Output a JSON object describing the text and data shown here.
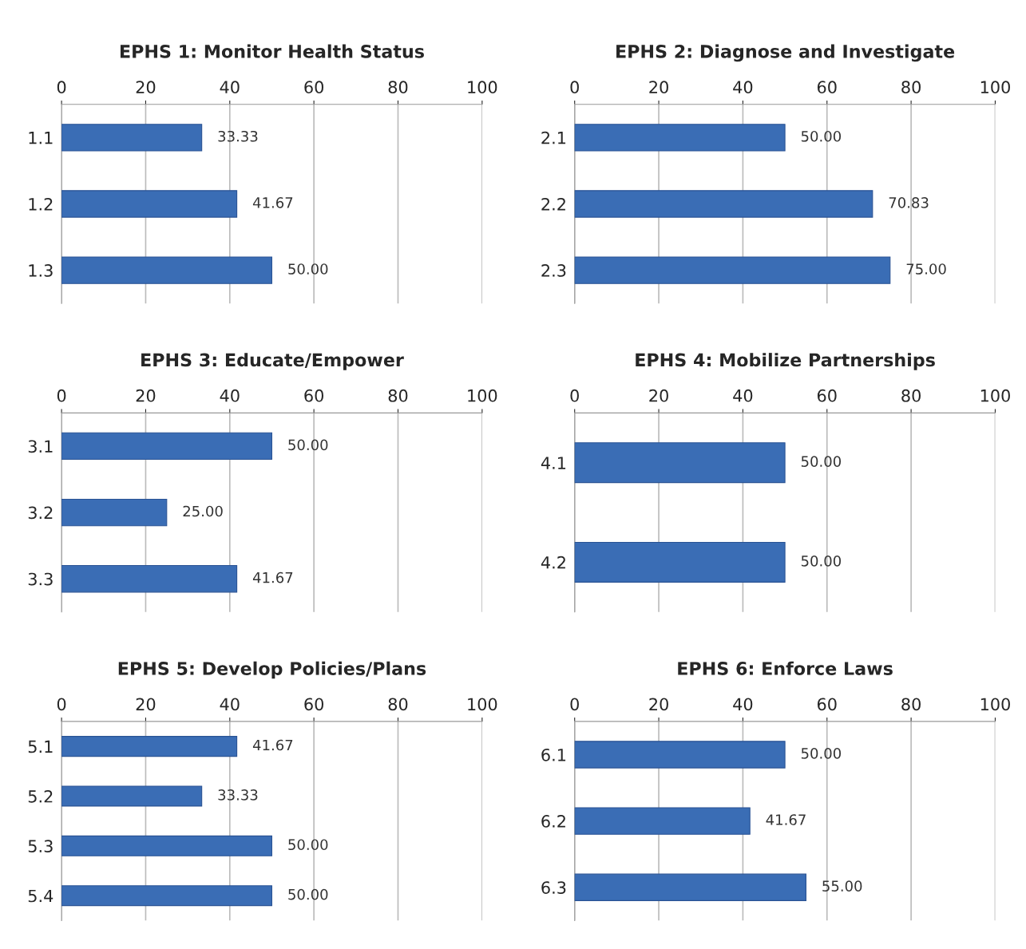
{
  "chart_data": [
    {
      "type": "bar",
      "orientation": "horizontal",
      "title": "EPHS 1: Monitor Health Status",
      "categories": [
        "1.1",
        "1.2",
        "1.3"
      ],
      "values": [
        33.33,
        41.67,
        50
      ],
      "value_labels": [
        "33.33",
        "41.67",
        "50.00"
      ],
      "color": "#3a6db5",
      "xlim": [
        0,
        100
      ],
      "xticks": [
        0,
        20,
        40,
        60,
        80,
        100
      ],
      "grid": "x",
      "legend": false
    },
    {
      "type": "bar",
      "orientation": "horizontal",
      "title": "EPHS 2: Diagnose and Investigate",
      "categories": [
        "2.1",
        "2.2",
        "2.3"
      ],
      "values": [
        50,
        70.83,
        75
      ],
      "value_labels": [
        "50.00",
        "70.83",
        "75.00"
      ],
      "color": "#3a6db5",
      "xlim": [
        0,
        100
      ],
      "xticks": [
        0,
        20,
        40,
        60,
        80,
        100
      ],
      "grid": "x",
      "legend": false
    },
    {
      "type": "bar",
      "orientation": "horizontal",
      "title": "EPHS 3: Educate/Empower",
      "categories": [
        "3.1",
        "3.2",
        "3.3"
      ],
      "values": [
        50,
        25,
        41.67
      ],
      "value_labels": [
        "50.00",
        "25.00",
        "41.67"
      ],
      "color": "#3a6db5",
      "xlim": [
        0,
        100
      ],
      "xticks": [
        0,
        20,
        40,
        60,
        80,
        100
      ],
      "grid": "x",
      "legend": false
    },
    {
      "type": "bar",
      "orientation": "horizontal",
      "title": "EPHS 4: Mobilize Partnerships",
      "categories": [
        "4.1",
        "4.2"
      ],
      "values": [
        50,
        50
      ],
      "value_labels": [
        "50.00",
        "50.00"
      ],
      "color": "#3a6db5",
      "xlim": [
        0,
        100
      ],
      "xticks": [
        0,
        20,
        40,
        60,
        80,
        100
      ],
      "grid": "x",
      "legend": false
    },
    {
      "type": "bar",
      "orientation": "horizontal",
      "title": "EPHS 5: Develop Policies/Plans",
      "categories": [
        "5.1",
        "5.2",
        "5.3",
        "5.4"
      ],
      "values": [
        41.67,
        33.33,
        50,
        50
      ],
      "value_labels": [
        "41.67",
        "33.33",
        "50.00",
        "50.00"
      ],
      "color": "#3a6db5",
      "xlim": [
        0,
        100
      ],
      "xticks": [
        0,
        20,
        40,
        60,
        80,
        100
      ],
      "grid": "x",
      "legend": false
    },
    {
      "type": "bar",
      "orientation": "horizontal",
      "title": "EPHS 6: Enforce Laws",
      "categories": [
        "6.1",
        "6.2",
        "6.3"
      ],
      "values": [
        50,
        41.67,
        55
      ],
      "value_labels": [
        "50.00",
        "41.67",
        "55.00"
      ],
      "color": "#3a6db5",
      "xlim": [
        0,
        100
      ],
      "xticks": [
        0,
        20,
        40,
        60,
        80,
        100
      ],
      "grid": "x",
      "legend": false
    }
  ]
}
